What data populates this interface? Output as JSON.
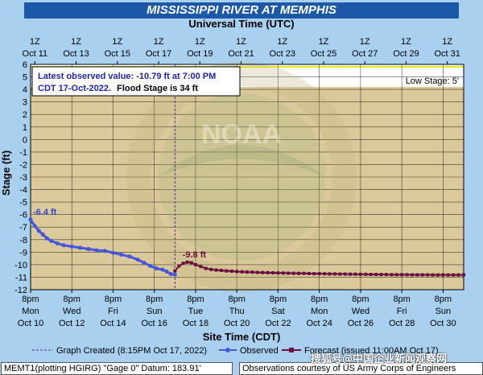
{
  "header": {
    "title": "MISSISSIPPI RIVER AT MEMPHIS",
    "top_axis_title": "Universal Time (UTC)",
    "bottom_axis_title": "Site Time (CDT)",
    "y_axis_title": "Stage (ft)"
  },
  "info_box": {
    "line1": "Latest observed value: -10.79 ft at 7:00 PM",
    "line2_prefix": "CDT 17-Oct-2022.",
    "line2_flood": "Flood Stage is 34 ft"
  },
  "low_stage_label": "Low Stage: 5'",
  "watermark": "NOAA",
  "annotations": {
    "observed_start": "-6.4 ft",
    "forecast_peak": "-9.8 ft"
  },
  "legend": {
    "graph_created": "Graph Created (8:15PM Oct 17, 2022)",
    "observed": "Observed",
    "forecast": "Forecast (issued 11:00AM Oct 17)"
  },
  "footer": {
    "site_info": "MEMT1(plotting HGIRG) \"Gage 0\" Datum: 183.91'",
    "credit": "Observations courtesy of US Army Corps of Engineers"
  },
  "watermark_overlay": "搜狐号@中国企业新闻观察网",
  "colors": {
    "background": "#a9d0ef",
    "plot_fill": "#dcc99b",
    "observed": "#4455dd",
    "forecast": "#6a1040",
    "flood_line": "#e8e820",
    "title_bar": "#1c58a8"
  },
  "chart_data": {
    "type": "line",
    "ylim": [
      -12,
      6
    ],
    "yticks": [
      6,
      5,
      4,
      3,
      2,
      1,
      0,
      -1,
      -2,
      -3,
      -4,
      -5,
      -6,
      -7,
      -8,
      -9,
      -10,
      -11,
      -12
    ],
    "xlim": [
      0,
      21
    ],
    "bottom_ticks": [
      {
        "top": "8pm",
        "mid": "Mon",
        "bot": "Oct 10"
      },
      {
        "top": "8pm",
        "mid": "Wed",
        "bot": "Oct 12"
      },
      {
        "top": "8pm",
        "mid": "Fri",
        "bot": "Oct 14"
      },
      {
        "top": "8pm",
        "mid": "Sun",
        "bot": "Oct 16"
      },
      {
        "top": "8pm",
        "mid": "Tue",
        "bot": "Oct 18"
      },
      {
        "top": "8pm",
        "mid": "Thu",
        "bot": "Oct 20"
      },
      {
        "top": "8pm",
        "mid": "Sat",
        "bot": "Oct 22"
      },
      {
        "top": "8pm",
        "mid": "Mon",
        "bot": "Oct 24"
      },
      {
        "top": "8pm",
        "mid": "Wed",
        "bot": "Oct 26"
      },
      {
        "top": "8pm",
        "mid": "Fri",
        "bot": "Oct 28"
      },
      {
        "top": "8pm",
        "mid": "Sun",
        "bot": "Oct 30"
      }
    ],
    "top_ticks": [
      {
        "top": "1Z",
        "bot": "Oct 11"
      },
      {
        "top": "1Z",
        "bot": "Oct 13"
      },
      {
        "top": "1Z",
        "bot": "Oct 15"
      },
      {
        "top": "1Z",
        "bot": "Oct 17"
      },
      {
        "top": "1Z",
        "bot": "Oct 19"
      },
      {
        "top": "1Z",
        "bot": "Oct 21"
      },
      {
        "top": "1Z",
        "bot": "Oct 23"
      },
      {
        "top": "1Z",
        "bot": "Oct 25"
      },
      {
        "top": "1Z",
        "bot": "Oct 27"
      },
      {
        "top": "1Z",
        "bot": "Oct 29"
      },
      {
        "top": "1Z",
        "bot": "Oct 31"
      }
    ],
    "graph_created_x": 7.0,
    "low_stage": 5,
    "series": [
      {
        "name": "Observed",
        "x": [
          0.0,
          0.2,
          0.4,
          0.6,
          0.8,
          1.0,
          1.3,
          1.6,
          2.0,
          2.4,
          2.8,
          3.2,
          3.6,
          4.0,
          4.4,
          4.8,
          5.2,
          5.5,
          5.8,
          6.1,
          6.4,
          6.6,
          6.8,
          7.0
        ],
        "y": [
          -6.4,
          -6.9,
          -7.3,
          -7.6,
          -7.9,
          -8.1,
          -8.3,
          -8.45,
          -8.55,
          -8.65,
          -8.75,
          -8.85,
          -8.9,
          -9.05,
          -9.2,
          -9.35,
          -9.6,
          -9.85,
          -10.1,
          -10.3,
          -10.4,
          -10.55,
          -10.75,
          -10.79
        ]
      },
      {
        "name": "Forecast",
        "x": [
          7.0,
          7.2,
          7.4,
          7.6,
          7.8,
          8.0,
          8.25,
          8.5,
          8.75,
          9.0,
          9.25,
          9.5,
          9.75,
          10.0,
          10.25,
          10.5,
          10.75,
          11.0,
          11.25,
          11.5,
          11.75,
          12.0,
          12.25,
          12.5,
          12.75,
          13.0,
          13.25,
          13.5,
          13.75,
          14.0,
          14.25,
          14.5,
          14.75,
          15.0,
          15.25,
          15.5,
          15.75,
          16.0,
          16.25,
          16.5,
          16.75,
          17.0,
          17.25,
          17.5,
          17.75,
          18.0,
          18.25,
          18.5,
          18.75,
          19.0,
          19.25,
          19.5,
          19.75,
          20.0,
          20.25,
          20.5,
          20.75,
          21.0
        ],
        "y": [
          -10.5,
          -10.1,
          -9.9,
          -9.8,
          -9.85,
          -10.0,
          -10.15,
          -10.3,
          -10.38,
          -10.43,
          -10.46,
          -10.5,
          -10.52,
          -10.55,
          -10.57,
          -10.59,
          -10.6,
          -10.62,
          -10.63,
          -10.64,
          -10.65,
          -10.66,
          -10.67,
          -10.68,
          -10.69,
          -10.7,
          -10.7,
          -10.71,
          -10.72,
          -10.72,
          -10.73,
          -10.74,
          -10.74,
          -10.75,
          -10.75,
          -10.76,
          -10.76,
          -10.77,
          -10.77,
          -10.78,
          -10.78,
          -10.79,
          -10.79,
          -10.8,
          -10.8,
          -10.8,
          -10.8,
          -10.81,
          -10.81,
          -10.81,
          -10.81,
          -10.82,
          -10.82,
          -10.82,
          -10.82,
          -10.82,
          -10.82,
          -10.82
        ]
      }
    ]
  }
}
